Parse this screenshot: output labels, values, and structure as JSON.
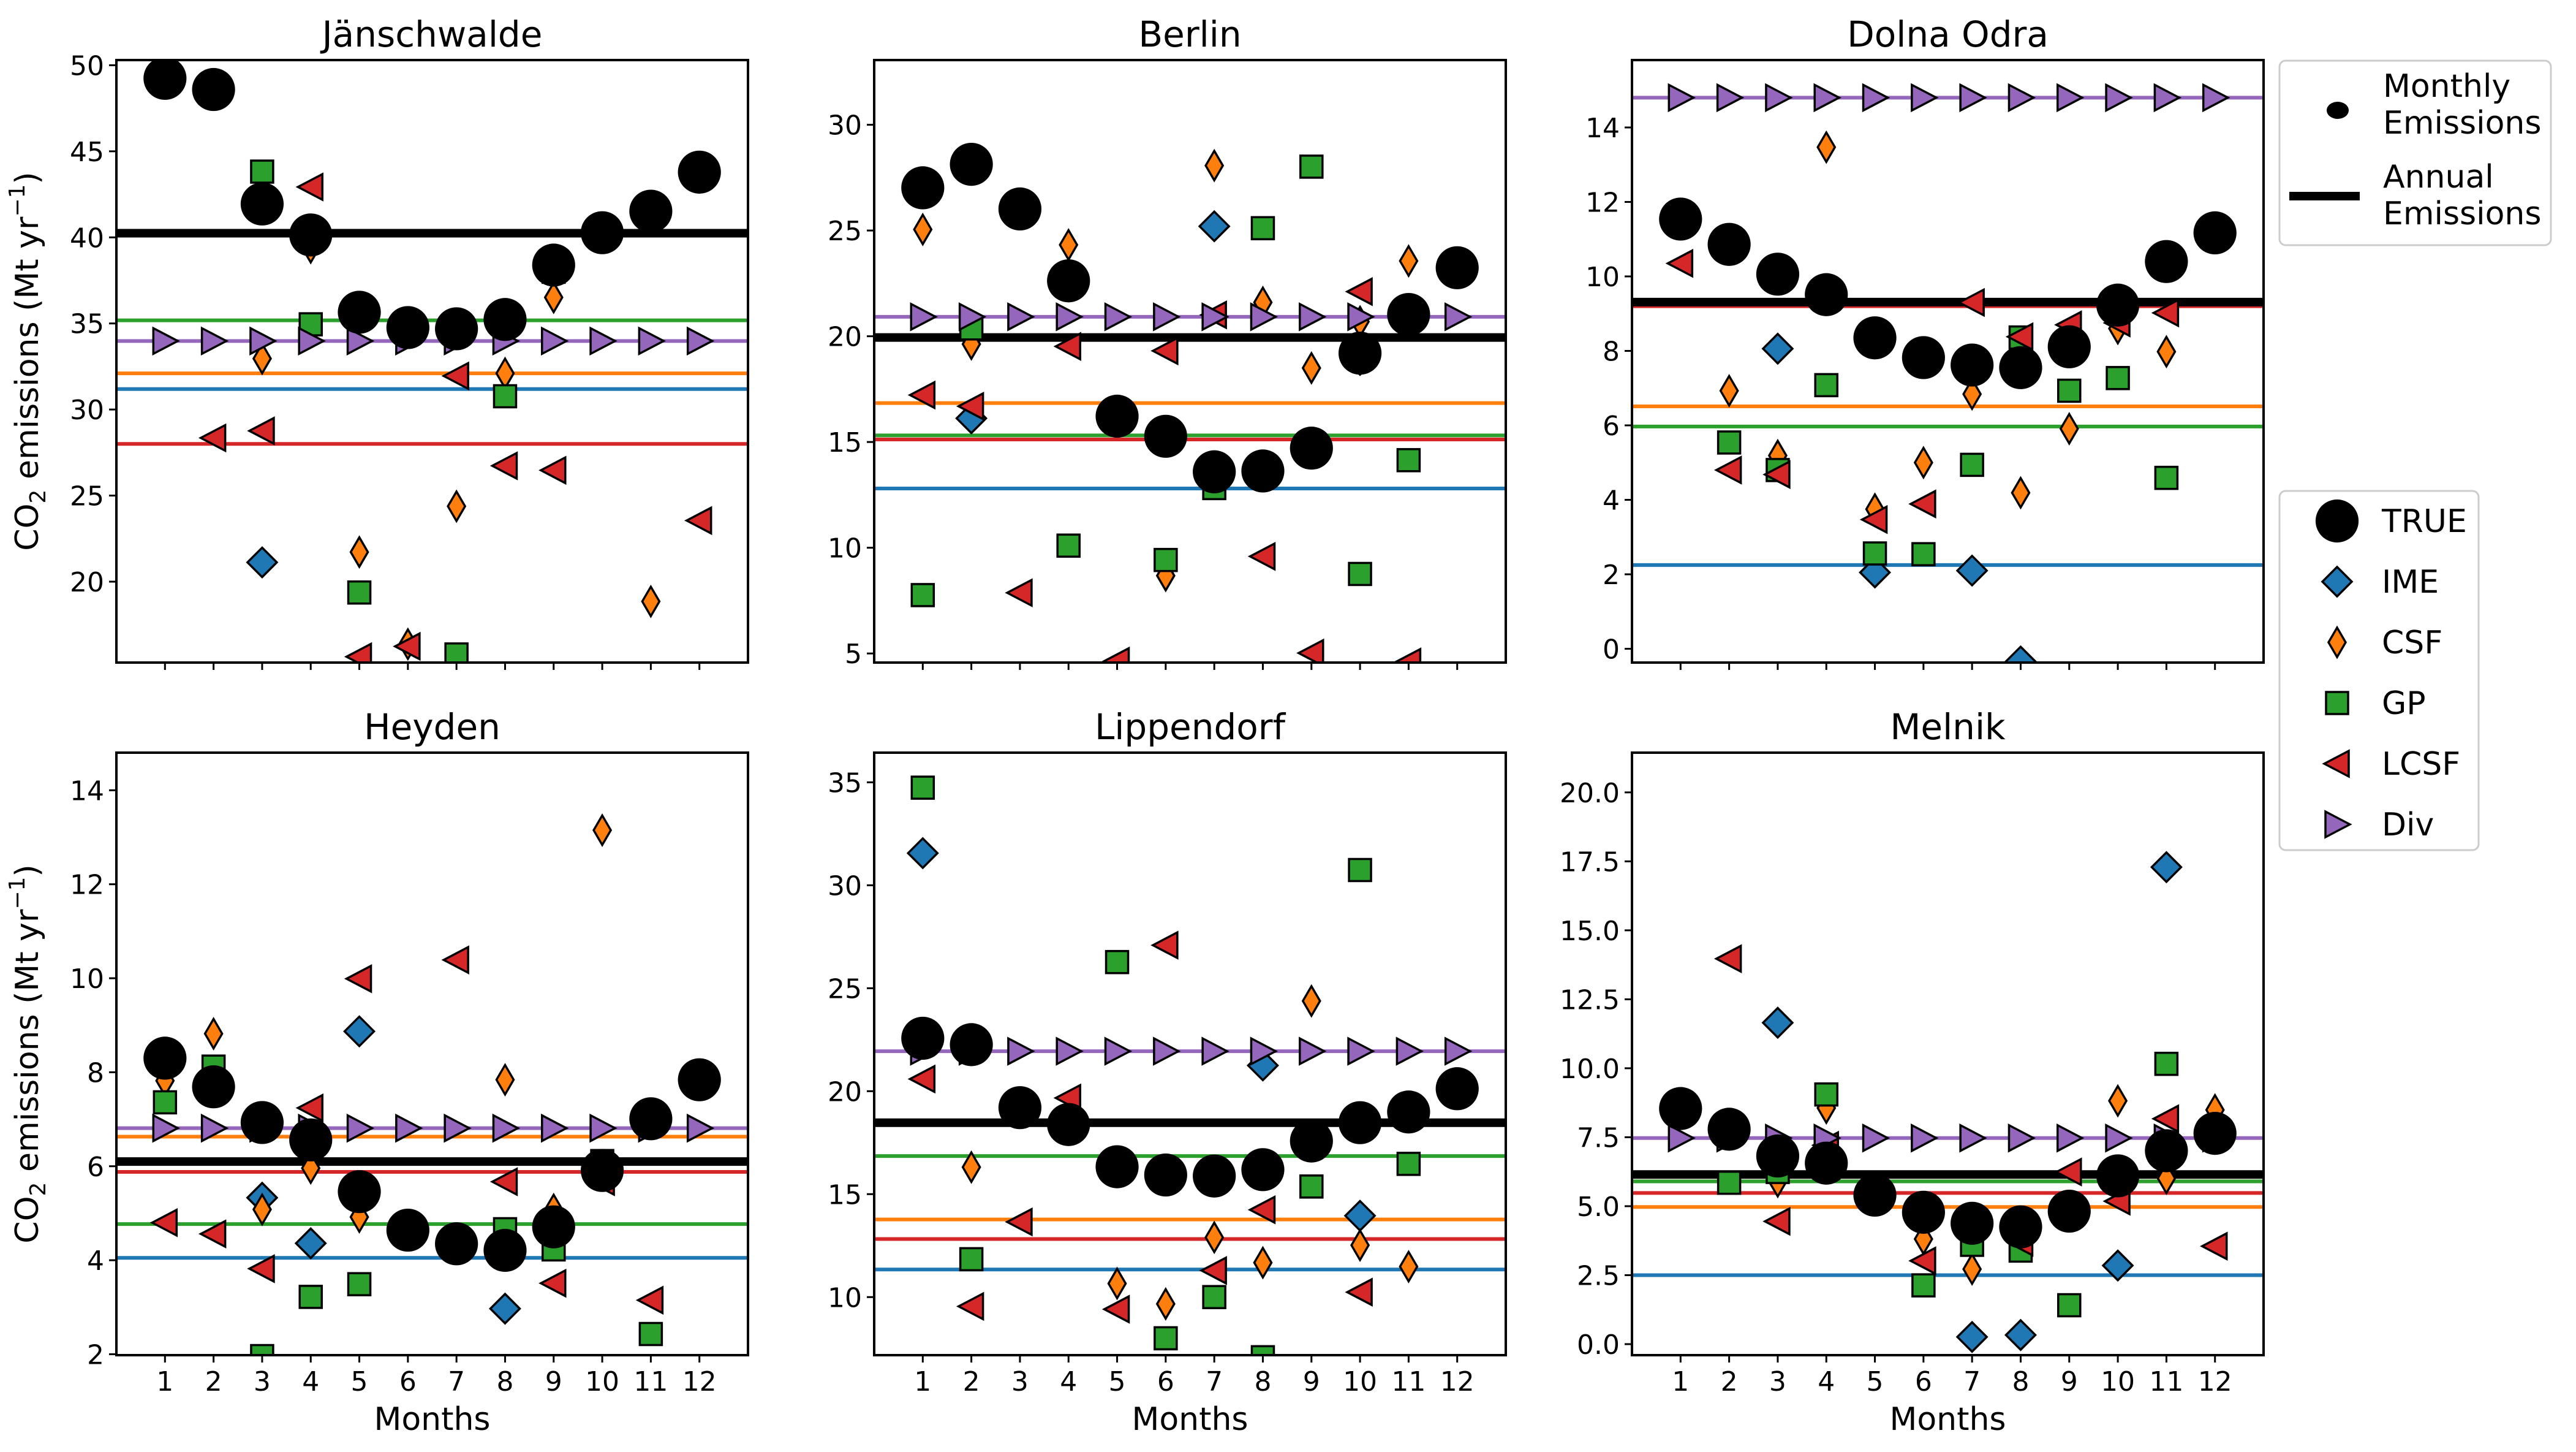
{
  "chart_data": {
    "type": "scatter",
    "figure": {
      "ylabel": "CO2 emissions (Mt yr-1)",
      "xlabel": "Months",
      "x_ticks": [
        1,
        2,
        3,
        4,
        5,
        6,
        7,
        8,
        9,
        10,
        11,
        12
      ],
      "xlim": [
        0,
        13
      ],
      "grid": false,
      "colors": {
        "TRUE": "#000000",
        "IME": "#1f77b4",
        "CSF": "#ff7f0e",
        "GP": "#2ca02c",
        "LCSF": "#d62728",
        "Div": "#9467bd"
      },
      "legend_top": {
        "placement": "right-top",
        "entries": [
          {
            "label": "Monthly Emissions",
            "line1": "Monthly",
            "line2": "Emissions",
            "marker": "circle"
          },
          {
            "label": "Annual Emissions",
            "line1": "Annual",
            "line2": "Emissions",
            "marker": "line"
          }
        ]
      },
      "legend_methods": {
        "placement": "right-middle",
        "entries": [
          {
            "label": "TRUE",
            "marker": "circle"
          },
          {
            "label": "IME",
            "marker": "diamond"
          },
          {
            "label": "CSF",
            "marker": "thin-diamond"
          },
          {
            "label": "GP",
            "marker": "square"
          },
          {
            "label": "LCSF",
            "marker": "triangle-left"
          },
          {
            "label": "Div",
            "marker": "triangle-right"
          }
        ]
      }
    },
    "panels": [
      {
        "title": "Jänschwalde",
        "ylim": [
          15.3,
          50.3
        ],
        "yticks": [
          20,
          25,
          30,
          35,
          40,
          45,
          50
        ],
        "ytick_labels": [
          "20",
          "25",
          "30",
          "35",
          "40",
          "45",
          "50"
        ],
        "show_ylabel": true,
        "show_xticklabels": false,
        "annual": {
          "TRUE": 40.24,
          "IME": 31.19,
          "CSF": 32.1,
          "GP": 35.18,
          "LCSF": 28.0,
          "Div": 33.98
        },
        "series": {
          "IME": [
            null,
            null,
            21.12,
            null,
            null,
            null,
            null,
            null,
            null,
            null,
            null,
            null
          ],
          "CSF": [
            null,
            null,
            32.96,
            39.4,
            21.72,
            16.37,
            24.38,
            32.1,
            36.51,
            null,
            18.85,
            null
          ],
          "GP": [
            null,
            null,
            43.82,
            34.95,
            19.37,
            null,
            15.77,
            30.77,
            38.0,
            null,
            null,
            null
          ],
          "LCSF": [
            null,
            28.35,
            28.76,
            42.93,
            15.64,
            16.24,
            31.95,
            26.73,
            26.47,
            null,
            null,
            23.55
          ],
          "Div": [
            33.98,
            33.98,
            33.98,
            33.98,
            33.98,
            33.98,
            33.98,
            33.98,
            33.98,
            33.98,
            33.98,
            33.98
          ],
          "TRUE": [
            49.24,
            48.59,
            41.94,
            40.14,
            35.65,
            34.76,
            34.69,
            35.23,
            38.39,
            40.27,
            41.52,
            43.79
          ]
        }
      },
      {
        "title": "Berlin",
        "ylim": [
          4.57,
          33.06
        ],
        "yticks": [
          5,
          10,
          15,
          20,
          25,
          30
        ],
        "ytick_labels": [
          "5",
          "10",
          "15",
          "20",
          "25",
          "30"
        ],
        "show_ylabel": false,
        "show_xticklabels": false,
        "annual": {
          "TRUE": 19.94,
          "IME": 12.8,
          "CSF": 16.84,
          "GP": 15.31,
          "LCSF": 15.12,
          "Div": 20.92
        },
        "series": {
          "IME": [
            null,
            16.12,
            null,
            null,
            null,
            null,
            25.2,
            null,
            null,
            18.88,
            null,
            null
          ],
          "CSF": [
            25.05,
            19.63,
            null,
            24.32,
            null,
            8.68,
            28.07,
            21.6,
            18.5,
            20.69,
            23.56,
            null
          ],
          "GP": [
            7.76,
            20.37,
            null,
            10.1,
            null,
            9.42,
            12.82,
            25.11,
            28.02,
            8.76,
            14.14,
            null
          ],
          "LCSF": [
            17.22,
            16.69,
            7.87,
            19.52,
            4.64,
            19.31,
            21.01,
            9.59,
            5.02,
            22.11,
            4.6,
            null
          ],
          "Div": [
            20.92,
            20.92,
            20.92,
            20.92,
            20.92,
            20.92,
            20.92,
            20.92,
            20.92,
            20.92,
            20.92,
            20.92
          ],
          "TRUE": [
            27.02,
            28.13,
            26.02,
            22.62,
            16.22,
            15.27,
            13.59,
            13.63,
            14.71,
            19.2,
            21.03,
            23.24
          ]
        }
      },
      {
        "title": "Dolna Odra",
        "ylim": [
          -0.37,
          15.81
        ],
        "yticks": [
          0,
          2,
          4,
          6,
          8,
          10,
          12,
          14
        ],
        "ytick_labels": [
          "0",
          "2",
          "4",
          "6",
          "8",
          "10",
          "12",
          "14"
        ],
        "show_ylabel": false,
        "show_xticklabels": false,
        "annual": {
          "TRUE": 9.31,
          "IME": 2.25,
          "CSF": 6.51,
          "GP": 5.97,
          "LCSF": 9.2,
          "Div": 14.8
        },
        "series": {
          "IME": [
            null,
            null,
            8.06,
            null,
            2.05,
            null,
            2.1,
            -0.34,
            null,
            null,
            null,
            null
          ],
          "CSF": [
            null,
            6.93,
            5.19,
            13.47,
            3.75,
            5.0,
            6.84,
            4.19,
            5.91,
            8.6,
            7.98,
            null
          ],
          "GP": [
            null,
            5.54,
            4.8,
            7.08,
            2.56,
            2.54,
            4.94,
            8.36,
            6.93,
            7.27,
            4.59,
            null
          ],
          "LCSF": [
            10.35,
            4.8,
            4.68,
            null,
            3.47,
            3.89,
            9.3,
            8.38,
            8.7,
            8.75,
            9.02,
            null
          ],
          "Div": [
            14.8,
            14.8,
            14.8,
            14.8,
            14.8,
            14.8,
            14.8,
            14.8,
            14.8,
            14.8,
            14.8,
            14.8
          ],
          "TRUE": [
            11.54,
            10.86,
            10.06,
            9.51,
            8.35,
            7.82,
            7.62,
            7.55,
            8.11,
            9.23,
            10.4,
            11.17
          ]
        }
      },
      {
        "title": "Heyden",
        "ylim": [
          1.98,
          14.8
        ],
        "yticks": [
          2,
          4,
          6,
          8,
          10,
          12,
          14
        ],
        "ytick_labels": [
          "2",
          "4",
          "6",
          "8",
          "10",
          "12",
          "14"
        ],
        "show_ylabel": true,
        "show_xticklabels": true,
        "annual": {
          "TRUE": 6.1,
          "IME": 4.05,
          "CSF": 6.63,
          "GP": 4.77,
          "LCSF": 5.88,
          "Div": 6.81
        },
        "series": {
          "IME": [
            null,
            null,
            5.33,
            4.36,
            8.87,
            null,
            null,
            2.97,
            null,
            null,
            null,
            null
          ],
          "CSF": [
            7.82,
            8.82,
            5.08,
            5.96,
            4.92,
            null,
            null,
            7.84,
            5.08,
            13.15,
            null,
            null
          ],
          "GP": [
            7.36,
            8.12,
            1.96,
            3.22,
            3.49,
            null,
            null,
            4.66,
            4.23,
            6.11,
            2.43,
            null
          ],
          "LCSF": [
            4.8,
            4.56,
            3.82,
            7.24,
            9.99,
            null,
            10.39,
            5.67,
            3.51,
            5.67,
            3.15,
            null
          ],
          "Div": [
            6.81,
            6.81,
            6.81,
            6.81,
            6.81,
            6.81,
            6.81,
            6.81,
            6.81,
            6.81,
            6.81,
            6.81
          ],
          "TRUE": [
            8.3,
            7.69,
            6.93,
            6.56,
            5.46,
            4.64,
            4.35,
            4.21,
            4.71,
            5.91,
            7.01,
            7.84
          ]
        }
      },
      {
        "title": "Lippendorf",
        "ylim": [
          7.18,
          36.44
        ],
        "yticks": [
          10,
          15,
          20,
          25,
          30,
          35
        ],
        "ytick_labels": [
          "10",
          "15",
          "20",
          "25",
          "30",
          "35"
        ],
        "show_ylabel": false,
        "show_xticklabels": true,
        "annual": {
          "TRUE": 18.47,
          "IME": 11.34,
          "CSF": 13.77,
          "GP": 16.85,
          "LCSF": 12.82,
          "Div": 21.94
        },
        "series": {
          "IME": [
            31.56,
            null,
            null,
            null,
            null,
            null,
            null,
            21.25,
            null,
            13.95,
            null,
            null
          ],
          "CSF": [
            null,
            16.31,
            null,
            null,
            10.66,
            9.67,
            12.9,
            11.67,
            24.38,
            12.52,
            11.48,
            null
          ],
          "GP": [
            34.74,
            11.84,
            null,
            null,
            26.27,
            8.0,
            10.0,
            7.08,
            15.37,
            30.74,
            16.47,
            null
          ],
          "LCSF": [
            20.59,
            9.55,
            13.65,
            19.67,
            9.41,
            27.09,
            11.29,
            14.24,
            null,
            10.24,
            null,
            null
          ],
          "Div": [
            21.94,
            21.94,
            21.94,
            21.94,
            21.94,
            21.94,
            21.94,
            21.94,
            21.94,
            21.94,
            21.94,
            21.94
          ],
          "TRUE": [
            22.57,
            22.26,
            19.2,
            18.38,
            16.33,
            15.93,
            15.88,
            16.19,
            17.58,
            18.47,
            18.99,
            20.12
          ]
        }
      },
      {
        "title": "Melnik",
        "ylim": [
          -0.4,
          21.44
        ],
        "yticks": [
          0,
          2.5,
          5,
          7.5,
          10,
          12.5,
          15,
          17.5,
          20
        ],
        "ytick_labels": [
          "0.0",
          "2.5",
          "5.0",
          "7.5",
          "10.0",
          "12.5",
          "15.0",
          "17.5",
          "20.0"
        ],
        "show_ylabel": false,
        "show_xticklabels": true,
        "annual": {
          "TRUE": 6.15,
          "IME": 2.5,
          "CSF": 4.97,
          "GP": 5.9,
          "LCSF": 5.48,
          "Div": 7.47
        },
        "series": {
          "IME": [
            null,
            null,
            11.65,
            null,
            null,
            null,
            0.26,
            0.33,
            null,
            2.85,
            17.29,
            null
          ],
          "CSF": [
            null,
            null,
            5.89,
            8.56,
            null,
            3.81,
            2.72,
            null,
            null,
            8.82,
            6.01,
            8.49
          ],
          "GP": [
            null,
            5.85,
            6.24,
            9.05,
            null,
            2.13,
            3.6,
            3.39,
            1.41,
            null,
            10.16,
            null
          ],
          "LCSF": [
            null,
            13.97,
            4.45,
            7.21,
            null,
            3.02,
            null,
            3.69,
            6.24,
            5.18,
            8.17,
            3.55
          ],
          "Div": [
            7.47,
            7.47,
            7.47,
            7.47,
            7.47,
            7.47,
            7.47,
            7.47,
            7.47,
            7.47,
            7.47,
            7.47
          ],
          "TRUE": [
            8.54,
            7.79,
            6.82,
            6.56,
            5.4,
            4.78,
            4.38,
            4.25,
            4.82,
            6.1,
            7.01,
            7.64
          ]
        }
      }
    ]
  }
}
